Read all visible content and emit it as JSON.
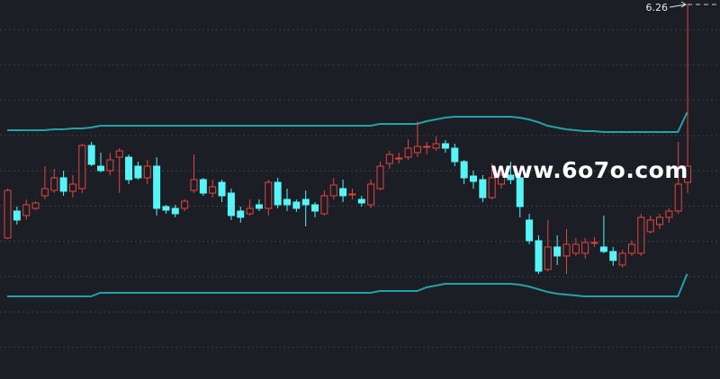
{
  "chart_data": {
    "type": "candlestick",
    "ylim": [
      2.09,
      6.31
    ],
    "up_color": "#e8433f",
    "down_color": "#55f5f7",
    "band_color": "#23a3a6",
    "grid": true,
    "open": [
      3.66,
      3.96,
      3.91,
      3.99,
      4.13,
      4.19,
      4.33,
      4.18,
      4.21,
      4.69,
      4.46,
      4.41,
      4.56,
      4.56,
      4.46,
      4.33,
      4.46,
      4.01,
      3.99,
      3.99,
      4.19,
      4.31,
      4.16,
      4.28,
      4.16,
      3.96,
      3.93,
      4.03,
      3.99,
      4.28,
      4.09,
      4.06,
      4.09,
      4.03,
      3.93,
      4.13,
      4.21,
      4.15,
      4.09,
      4.03,
      4.21,
      4.49,
      4.55,
      4.56,
      4.61,
      4.68,
      4.66,
      4.71,
      4.66,
      4.51,
      4.35,
      4.31,
      4.11,
      4.26,
      4.36,
      4.33,
      3.86,
      3.63,
      3.31,
      3.56,
      3.46,
      3.49,
      3.49,
      3.61,
      3.56,
      3.51,
      3.36,
      3.49,
      3.49,
      3.73,
      3.81,
      3.89,
      3.96,
      4.28
    ],
    "high": [
      4.21,
      4.01,
      4.09,
      4.07,
      4.46,
      4.43,
      4.41,
      4.36,
      4.71,
      4.73,
      4.61,
      4.61,
      4.66,
      4.59,
      4.51,
      4.53,
      4.56,
      4.03,
      4.03,
      4.09,
      4.59,
      4.33,
      4.31,
      4.31,
      4.21,
      4.01,
      4.09,
      4.09,
      4.31,
      4.33,
      4.21,
      4.09,
      4.19,
      4.06,
      4.19,
      4.33,
      4.31,
      4.21,
      4.13,
      4.31,
      4.51,
      4.63,
      4.61,
      4.76,
      4.96,
      4.73,
      4.79,
      4.75,
      4.71,
      4.53,
      4.41,
      4.36,
      4.49,
      4.46,
      4.51,
      4.39,
      3.93,
      3.69,
      3.86,
      3.69,
      3.76,
      3.66,
      3.66,
      3.67,
      3.91,
      3.56,
      3.53,
      3.63,
      3.93,
      3.91,
      3.93,
      3.99,
      4.73,
      6.26
    ],
    "low": [
      3.65,
      3.81,
      3.86,
      3.97,
      4.09,
      4.16,
      4.13,
      4.11,
      4.16,
      4.46,
      4.39,
      4.36,
      4.16,
      4.26,
      4.31,
      4.26,
      3.91,
      3.93,
      3.89,
      3.96,
      4.16,
      4.13,
      4.11,
      4.06,
      3.86,
      3.83,
      3.91,
      3.96,
      3.91,
      3.99,
      3.96,
      3.95,
      3.79,
      3.89,
      3.91,
      4.09,
      4.06,
      4.09,
      4.01,
      3.99,
      4.19,
      4.43,
      4.49,
      4.53,
      4.56,
      4.59,
      4.63,
      4.61,
      4.46,
      4.26,
      4.21,
      4.06,
      4.09,
      4.21,
      4.26,
      3.89,
      3.59,
      3.26,
      3.29,
      3.36,
      3.26,
      3.46,
      3.43,
      3.56,
      3.49,
      3.35,
      3.33,
      3.46,
      3.46,
      3.71,
      3.76,
      3.83,
      3.93,
      4.16
    ],
    "close": [
      4.19,
      3.86,
      4.03,
      4.05,
      4.21,
      4.33,
      4.18,
      4.26,
      4.69,
      4.48,
      4.41,
      4.53,
      4.63,
      4.31,
      4.33,
      4.46,
      3.99,
      3.97,
      3.93,
      4.07,
      4.31,
      4.16,
      4.23,
      4.13,
      3.91,
      3.89,
      3.99,
      3.99,
      4.28,
      4.03,
      4.03,
      3.99,
      4.03,
      3.96,
      4.13,
      4.25,
      4.13,
      4.15,
      4.05,
      4.26,
      4.46,
      4.59,
      4.55,
      4.66,
      4.68,
      4.68,
      4.71,
      4.66,
      4.51,
      4.33,
      4.29,
      4.11,
      4.33,
      4.36,
      4.31,
      4.01,
      3.63,
      3.29,
      3.56,
      3.46,
      3.59,
      3.59,
      3.61,
      3.61,
      3.51,
      3.41,
      3.49,
      3.59,
      3.89,
      3.86,
      3.89,
      3.96,
      4.26,
      4.46
    ],
    "upper_band": [
      4.86,
      4.86,
      4.86,
      4.86,
      4.86,
      4.87,
      4.87,
      4.88,
      4.88,
      4.89,
      4.91,
      4.91,
      4.91,
      4.91,
      4.91,
      4.91,
      4.91,
      4.91,
      4.91,
      4.91,
      4.91,
      4.91,
      4.91,
      4.91,
      4.91,
      4.91,
      4.91,
      4.91,
      4.91,
      4.91,
      4.91,
      4.91,
      4.91,
      4.91,
      4.91,
      4.91,
      4.91,
      4.91,
      4.91,
      4.91,
      4.93,
      4.93,
      4.93,
      4.93,
      4.93,
      4.96,
      4.98,
      5.0,
      5.01,
      5.01,
      5.01,
      5.01,
      5.01,
      5.01,
      5.01,
      5.0,
      4.98,
      4.95,
      4.91,
      4.89,
      4.87,
      4.86,
      4.85,
      4.85,
      4.84,
      4.84,
      4.84,
      4.84,
      4.84,
      4.84,
      4.84,
      4.84,
      4.84,
      5.06
    ],
    "lower_band": [
      3.01,
      3.01,
      3.01,
      3.01,
      3.01,
      3.01,
      3.01,
      3.01,
      3.01,
      3.01,
      3.05,
      3.05,
      3.05,
      3.05,
      3.05,
      3.05,
      3.05,
      3.05,
      3.05,
      3.05,
      3.05,
      3.05,
      3.05,
      3.05,
      3.05,
      3.05,
      3.05,
      3.05,
      3.05,
      3.05,
      3.05,
      3.05,
      3.05,
      3.05,
      3.05,
      3.05,
      3.05,
      3.05,
      3.05,
      3.05,
      3.07,
      3.07,
      3.07,
      3.07,
      3.07,
      3.11,
      3.13,
      3.15,
      3.15,
      3.15,
      3.15,
      3.15,
      3.15,
      3.15,
      3.15,
      3.14,
      3.12,
      3.09,
      3.06,
      3.04,
      3.03,
      3.02,
      3.01,
      3.01,
      3.01,
      3.01,
      3.01,
      3.01,
      3.01,
      3.01,
      3.01,
      3.01,
      3.01,
      3.26
    ],
    "annotation": {
      "label": "6.26",
      "value": 6.26
    },
    "watermark": "www.6o7o.com"
  }
}
